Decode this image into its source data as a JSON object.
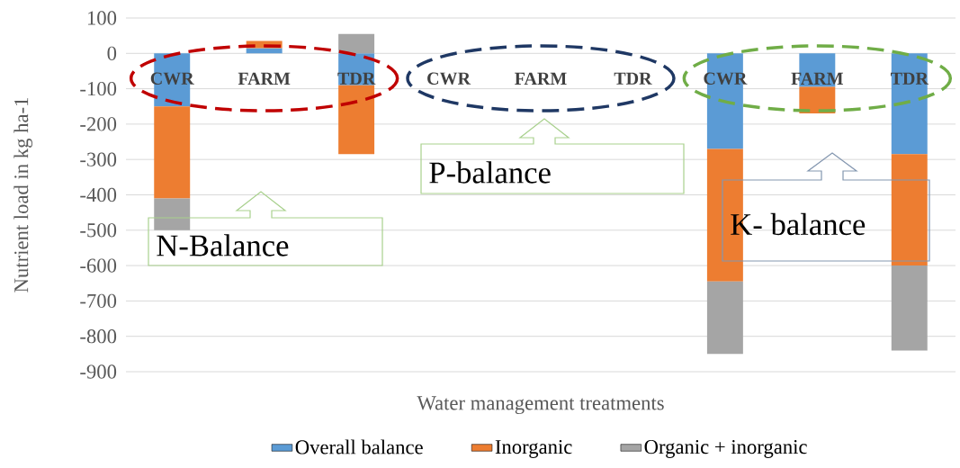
{
  "chart_data": {
    "type": "bar",
    "stacked": true,
    "xlabel": "Water management treatments",
    "ylabel": "Nutrient load in kg ha-1",
    "categories": [
      "CWR",
      "FARM",
      "TDR",
      "CWR",
      "FARM",
      "TDR",
      "CWR",
      "FARM",
      "TDR"
    ],
    "series": [
      {
        "name": "Overall balance",
        "color": "#5b9bd5",
        "values": [
          -150,
          15,
          -90,
          0,
          0,
          0,
          -270,
          -95,
          -285
        ]
      },
      {
        "name": "Inorganic",
        "color": "#ed7d31",
        "values": [
          -260,
          20,
          -195,
          0,
          0,
          0,
          -375,
          -75,
          -315
        ]
      },
      {
        "name": "Organic + inorganic",
        "color": "#a5a5a5",
        "values": [
          -90,
          0,
          55,
          0,
          0,
          0,
          -205,
          0,
          -240
        ]
      }
    ],
    "ylim": [
      -900,
      100
    ],
    "yticks": [
      -900,
      -800,
      -700,
      -600,
      -500,
      -400,
      -300,
      -200,
      -100,
      0,
      100
    ],
    "grid": "y",
    "legend": "bottom",
    "annotations": [
      "N-Balance",
      "P-balance",
      "K-  balance"
    ]
  }
}
